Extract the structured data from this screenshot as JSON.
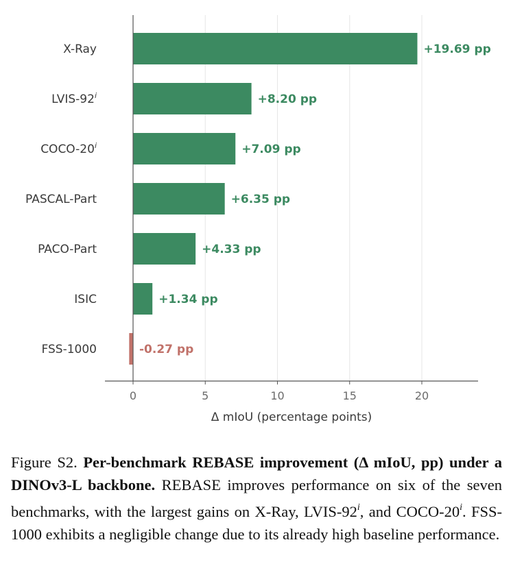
{
  "chart_data": {
    "type": "bar",
    "orientation": "horizontal",
    "categories": [
      "X-Ray",
      "LVIS-92",
      "COCO-20",
      "PASCAL-Part",
      "PACO-Part",
      "ISIC",
      "FSS-1000"
    ],
    "category_superscripts": [
      "",
      "i",
      "i",
      "",
      "",
      "",
      ""
    ],
    "values": [
      19.69,
      8.2,
      7.09,
      6.35,
      4.33,
      1.34,
      -0.27
    ],
    "data_labels": [
      "+19.69 pp",
      "+8.20 pp",
      "+7.09 pp",
      "+6.35 pp",
      "+4.33 pp",
      "+1.34 pp",
      "-0.27 pp"
    ],
    "xlabel": "Δ mIoU (percentage points)",
    "ylabel": "",
    "title": "",
    "xlim": [
      -1.9,
      24
    ],
    "xticks": [
      0,
      5,
      10,
      15,
      20
    ],
    "grid": "vertical",
    "colors": {
      "positive": "#3c8a61",
      "negative": "#c1726a",
      "axis": "#555555",
      "grid": "#e6e6e6"
    }
  },
  "caption": {
    "figure_label": "Figure S2.",
    "bold_part1": "Per-benchmark REBASE improvement (Δ mIoU, pp) under a DINOv3-L backbone.",
    "text_part1": "REBASE improves performance on six of the seven benchmarks, with the largest gains on X-Ray, LVIS-92",
    "sup1": "i",
    "text_part2": ", and COCO-20",
    "sup2": "i",
    "text_part3": ". FSS-1000 exhibits a negligible change due to its already high baseline performance."
  }
}
